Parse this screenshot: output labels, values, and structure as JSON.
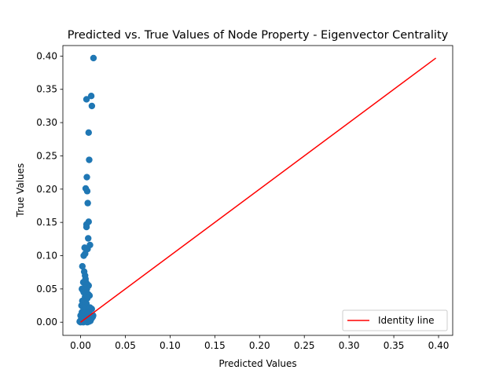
{
  "chart_data": {
    "type": "scatter",
    "title": "Predicted vs. True Values of Node Property - Eigenvector Centrality",
    "xlabel": "Predicted Values",
    "ylabel": "True Values",
    "xlim": [
      -0.0198,
      0.4158
    ],
    "ylim": [
      -0.0198,
      0.4158
    ],
    "xticks": [
      0.0,
      0.05,
      0.1,
      0.15,
      0.2,
      0.25,
      0.3,
      0.35,
      0.4
    ],
    "xtick_labels": [
      "0.00",
      "0.05",
      "0.10",
      "0.15",
      "0.20",
      "0.25",
      "0.30",
      "0.35",
      "0.40"
    ],
    "yticks": [
      0.0,
      0.05,
      0.1,
      0.15,
      0.2,
      0.25,
      0.3,
      0.35,
      0.4
    ],
    "ytick_labels": [
      "0.00",
      "0.05",
      "0.10",
      "0.15",
      "0.20",
      "0.25",
      "0.30",
      "0.35",
      "0.40"
    ],
    "grid": false,
    "legend_position": "lower-right",
    "series": [
      {
        "color": "#1f77b4",
        "marker": "circle",
        "points": [
          [
            0.0144,
            0.397
          ],
          [
            0.0119,
            0.34
          ],
          [
            0.0066,
            0.335
          ],
          [
            0.0126,
            0.325
          ],
          [
            0.009,
            0.285
          ],
          [
            0.0096,
            0.244
          ],
          [
            0.007,
            0.218
          ],
          [
            0.0057,
            0.201
          ],
          [
            0.0074,
            0.197
          ],
          [
            0.008,
            0.179
          ],
          [
            0.009,
            0.151
          ],
          [
            0.0066,
            0.147
          ],
          [
            0.0066,
            0.143
          ],
          [
            0.0085,
            0.126
          ],
          [
            0.0105,
            0.116
          ],
          [
            0.0045,
            0.112
          ],
          [
            0.0078,
            0.11
          ],
          [
            0.0051,
            0.103
          ],
          [
            0.0035,
            0.1
          ],
          [
            0.002,
            0.084
          ],
          [
            0.004,
            0.076
          ],
          [
            0.005,
            0.07
          ],
          [
            0.0055,
            0.065
          ],
          [
            0.003,
            0.06
          ],
          [
            0.006,
            0.06
          ],
          [
            0.0075,
            0.057
          ],
          [
            0.009,
            0.055
          ],
          [
            0.0015,
            0.05
          ],
          [
            0.0025,
            0.048
          ],
          [
            0.0045,
            0.052
          ],
          [
            0.007,
            0.05
          ],
          [
            0.0035,
            0.045
          ],
          [
            0.006,
            0.044
          ],
          [
            0.0085,
            0.042
          ],
          [
            0.01,
            0.04
          ],
          [
            0.005,
            0.038
          ],
          [
            0.0075,
            0.036
          ],
          [
            0.002,
            0.032
          ],
          [
            0.004,
            0.03
          ],
          [
            0.0065,
            0.028
          ],
          [
            0.001,
            0.025
          ],
          [
            0.003,
            0.022
          ],
          [
            0.0055,
            0.02
          ],
          [
            0.008,
            0.018
          ],
          [
            0.0105,
            0.022
          ],
          [
            0.0125,
            0.02
          ],
          [
            0.0015,
            0.015
          ],
          [
            0.0045,
            0.014
          ],
          [
            0.007,
            0.012
          ],
          [
            0.0095,
            0.015
          ],
          [
            0.0115,
            0.01
          ],
          [
            0.0,
            0.01
          ],
          [
            0.0025,
            0.008
          ],
          [
            0.005,
            0.006
          ],
          [
            0.008,
            0.007
          ],
          [
            0.01,
            0.005
          ],
          [
            0.0135,
            0.008
          ],
          [
            0.014,
            0.01
          ],
          [
            0.0005,
            0.004
          ],
          [
            0.002,
            0.003
          ],
          [
            0.004,
            0.002
          ],
          [
            0.006,
            0.003
          ],
          [
            0.0085,
            0.002
          ],
          [
            0.011,
            0.004
          ],
          [
            0.0125,
            0.006
          ],
          [
            -0.001,
            0.001
          ],
          [
            0.0,
            0.0
          ],
          [
            0.003,
            0.0
          ],
          [
            0.0055,
            0.001
          ],
          [
            0.0075,
            0.0
          ],
          [
            0.0095,
            0.001
          ],
          [
            0.011,
            0.002
          ]
        ]
      },
      {
        "name": "Identity line",
        "color": "#ff0000",
        "type": "line",
        "x": [
          0.0,
          0.397
        ],
        "y": [
          0.0,
          0.397
        ]
      }
    ]
  }
}
